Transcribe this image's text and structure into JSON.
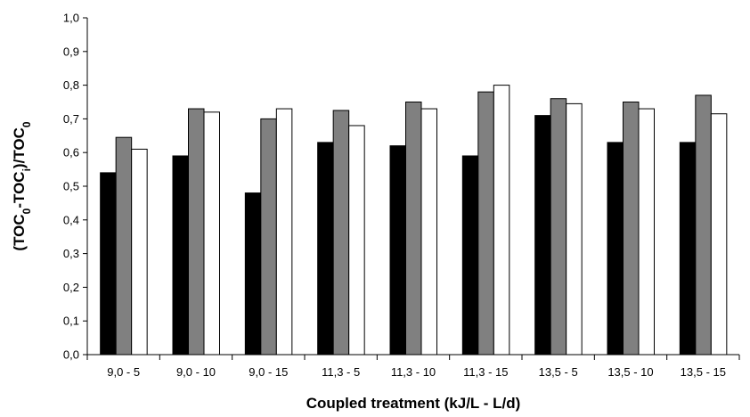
{
  "chart_data": {
    "type": "bar",
    "categories": [
      "9,0 - 5",
      "9,0 - 10",
      "9,0 - 15",
      "11,3 - 5",
      "11,3 - 10",
      "11,3 - 15",
      "13,5 - 5",
      "13,5 - 10",
      "13,5 - 15"
    ],
    "series": [
      {
        "values": [
          0.54,
          0.59,
          0.48,
          0.63,
          0.62,
          0.59,
          0.71,
          0.63,
          0.63
        ],
        "color": "#000000"
      },
      {
        "values": [
          0.645,
          0.73,
          0.7,
          0.725,
          0.75,
          0.78,
          0.76,
          0.75,
          0.77
        ],
        "color": "#808080"
      },
      {
        "values": [
          0.61,
          0.72,
          0.73,
          0.68,
          0.73,
          0.8,
          0.745,
          0.73,
          0.715
        ],
        "color": "#ffffff"
      }
    ],
    "xlabel": "Coupled treatment (kJ/L - L/d)",
    "ylabel": {
      "parts": [
        {
          "text": "(TOC"
        },
        {
          "text": "0",
          "sub": true
        },
        {
          "text": "-TOC"
        },
        {
          "text": "i",
          "sub": true
        },
        {
          "text": ")/TOC"
        },
        {
          "text": "0",
          "sub": true
        }
      ]
    },
    "ylim": [
      0,
      1.0
    ],
    "yticks": [
      0,
      0.1,
      0.2,
      0.3,
      0.4,
      0.5,
      0.6,
      0.7,
      0.8,
      0.9,
      1.0
    ],
    "ytick_labels": [
      "0,0",
      "0,1",
      "0,2",
      "0,3",
      "0,4",
      "0,5",
      "0,6",
      "0,7",
      "0,8",
      "0,9",
      "1,0"
    ],
    "grid": false,
    "legend": "none"
  }
}
